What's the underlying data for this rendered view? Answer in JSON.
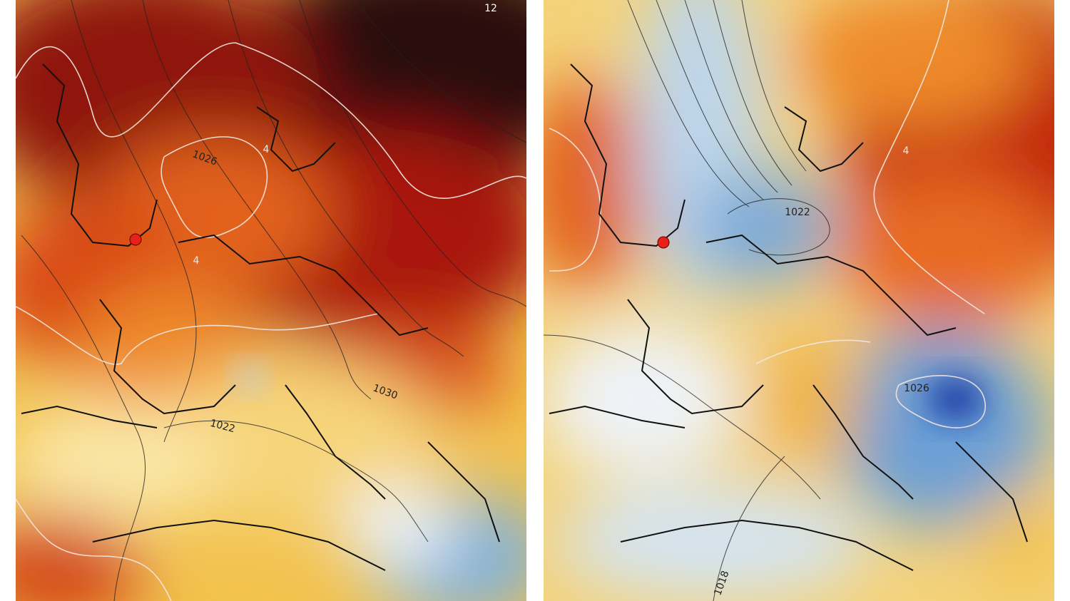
{
  "maps": [
    {
      "labels": [
        "12",
        "1026",
        "4",
        "4",
        "1022",
        "1030"
      ]
    },
    {
      "labels": [
        "1022",
        "4",
        "1026",
        "1018"
      ]
    }
  ]
}
